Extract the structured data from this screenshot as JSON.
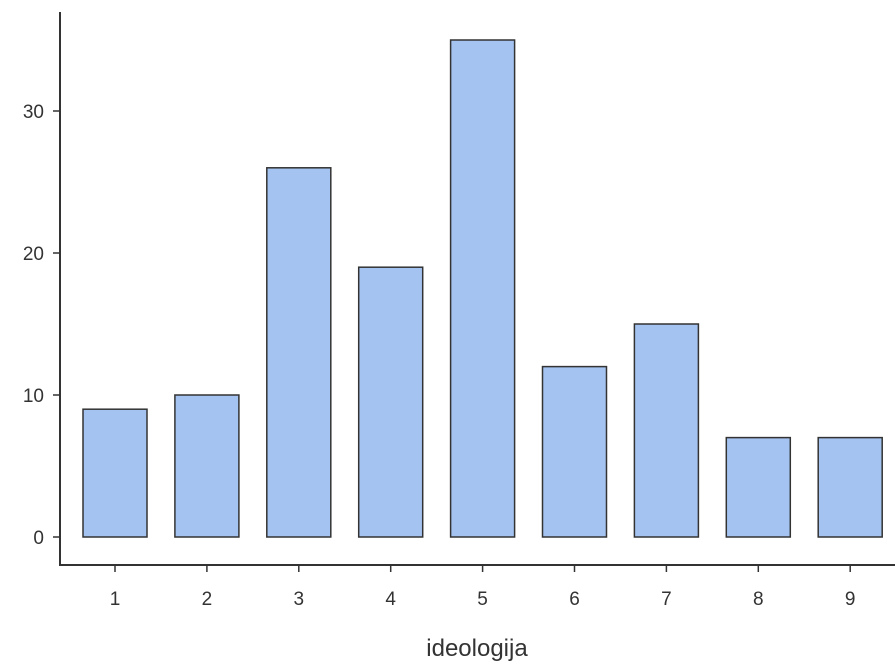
{
  "chart_data": {
    "type": "bar",
    "categories": [
      "1",
      "2",
      "3",
      "4",
      "5",
      "6",
      "7",
      "8",
      "9"
    ],
    "values": [
      9,
      10,
      26,
      19,
      35,
      12,
      15,
      7,
      7
    ],
    "title": "",
    "xlabel": "ideologija",
    "ylabel": "",
    "ylim": [
      0,
      35
    ],
    "yticks": [
      0,
      10,
      20,
      30
    ],
    "grid": false,
    "legend": "none",
    "colors": {
      "bar_fill": "#a4c3f0",
      "bar_stroke": "#333333",
      "axis": "#333333"
    }
  }
}
